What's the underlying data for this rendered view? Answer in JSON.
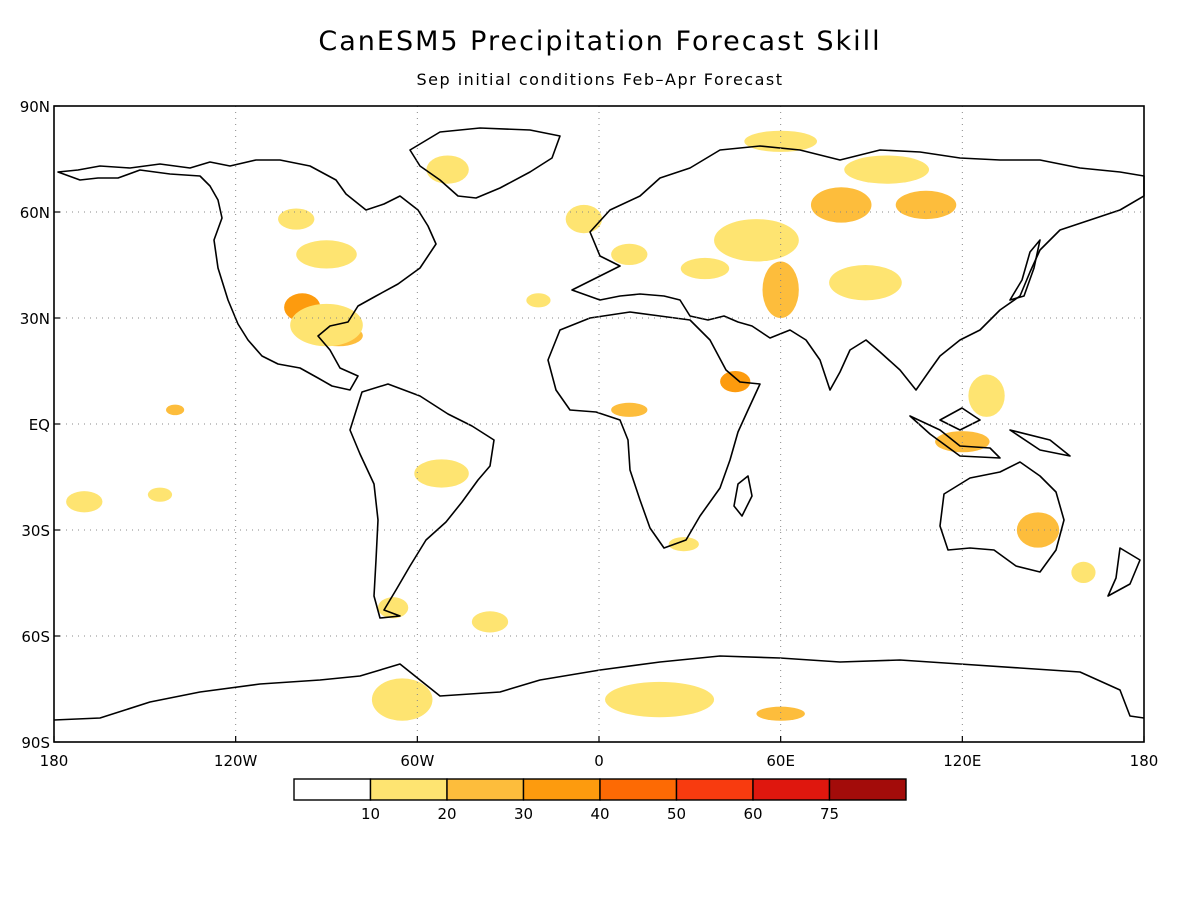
{
  "title": "CanESM5 Precipitation Forecast Skill",
  "subtitle": "Sep initial conditions  Feb–Apr Forecast",
  "axes": {
    "lon_range": [
      -180,
      180
    ],
    "lat_range": [
      -90,
      90
    ],
    "lon_ticks": [
      {
        "value": -180,
        "label": "180"
      },
      {
        "value": -120,
        "label": "120W"
      },
      {
        "value": -60,
        "label": "60W"
      },
      {
        "value": 0,
        "label": "0"
      },
      {
        "value": 60,
        "label": "60E"
      },
      {
        "value": 120,
        "label": "120E"
      },
      {
        "value": 180,
        "label": "180"
      }
    ],
    "lat_ticks": [
      {
        "value": 90,
        "label": "90N"
      },
      {
        "value": 60,
        "label": "60N"
      },
      {
        "value": 30,
        "label": "30N"
      },
      {
        "value": 0,
        "label": "EQ"
      },
      {
        "value": -30,
        "label": "30S"
      },
      {
        "value": -60,
        "label": "60S"
      },
      {
        "value": -90,
        "label": "90S"
      }
    ],
    "grid": true
  },
  "legend": {
    "bins": [
      {
        "color": "#ffffff"
      },
      {
        "color": "#fee471"
      },
      {
        "color": "#fdbd3c"
      },
      {
        "color": "#fd9b0e"
      },
      {
        "color": "#fd6a04"
      },
      {
        "color": "#f83b0f"
      },
      {
        "color": "#df170e"
      },
      {
        "color": "#a30c0a"
      }
    ],
    "labels": [
      "10",
      "20",
      "30",
      "40",
      "50",
      "60",
      "75"
    ]
  },
  "skill_regions": [
    {
      "lon": -98,
      "lat": 33,
      "rx": 6,
      "ry": 4,
      "level": 3
    },
    {
      "lon": -86,
      "lat": 25,
      "rx": 8,
      "ry": 3,
      "level": 2
    },
    {
      "lon": -90,
      "lat": 28,
      "rx": 12,
      "ry": 6,
      "level": 1
    },
    {
      "lon": -140,
      "lat": 4,
      "rx": 3,
      "ry": 1.5,
      "level": 2
    },
    {
      "lon": -170,
      "lat": -22,
      "rx": 6,
      "ry": 3,
      "level": 1
    },
    {
      "lon": -145,
      "lat": -20,
      "rx": 4,
      "ry": 2,
      "level": 1
    },
    {
      "lon": -52,
      "lat": -14,
      "rx": 9,
      "ry": 4,
      "level": 1
    },
    {
      "lon": -68,
      "lat": -52,
      "rx": 5,
      "ry": 3,
      "level": 1
    },
    {
      "lon": -36,
      "lat": -56,
      "rx": 6,
      "ry": 3,
      "level": 1
    },
    {
      "lon": -90,
      "lat": 48,
      "rx": 10,
      "ry": 4,
      "level": 1
    },
    {
      "lon": -100,
      "lat": 58,
      "rx": 6,
      "ry": 3,
      "level": 1
    },
    {
      "lon": -50,
      "lat": 72,
      "rx": 7,
      "ry": 4,
      "level": 1
    },
    {
      "lon": -20,
      "lat": 35,
      "rx": 4,
      "ry": 2,
      "level": 1
    },
    {
      "lon": -5,
      "lat": 58,
      "rx": 6,
      "ry": 4,
      "level": 1
    },
    {
      "lon": 10,
      "lat": 48,
      "rx": 6,
      "ry": 3,
      "level": 1
    },
    {
      "lon": 35,
      "lat": 44,
      "rx": 8,
      "ry": 3,
      "level": 1
    },
    {
      "lon": 52,
      "lat": 52,
      "rx": 14,
      "ry": 6,
      "level": 1
    },
    {
      "lon": 60,
      "lat": 38,
      "rx": 6,
      "ry": 8,
      "level": 2
    },
    {
      "lon": 80,
      "lat": 62,
      "rx": 10,
      "ry": 5,
      "level": 2
    },
    {
      "lon": 108,
      "lat": 62,
      "rx": 10,
      "ry": 4,
      "level": 2
    },
    {
      "lon": 95,
      "lat": 72,
      "rx": 14,
      "ry": 4,
      "level": 1
    },
    {
      "lon": 60,
      "lat": 80,
      "rx": 12,
      "ry": 3,
      "level": 1
    },
    {
      "lon": 88,
      "lat": 40,
      "rx": 12,
      "ry": 5,
      "level": 1
    },
    {
      "lon": 45,
      "lat": 12,
      "rx": 5,
      "ry": 3,
      "level": 3
    },
    {
      "lon": 10,
      "lat": 4,
      "rx": 6,
      "ry": 2,
      "level": 2
    },
    {
      "lon": 28,
      "lat": -34,
      "rx": 5,
      "ry": 2,
      "level": 1
    },
    {
      "lon": 120,
      "lat": -5,
      "rx": 9,
      "ry": 3,
      "level": 2
    },
    {
      "lon": 128,
      "lat": 8,
      "rx": 6,
      "ry": 6,
      "level": 1
    },
    {
      "lon": 145,
      "lat": -30,
      "rx": 7,
      "ry": 5,
      "level": 2
    },
    {
      "lon": 160,
      "lat": -42,
      "rx": 4,
      "ry": 3,
      "level": 1
    },
    {
      "lon": -65,
      "lat": -78,
      "rx": 10,
      "ry": 6,
      "level": 1
    },
    {
      "lon": 20,
      "lat": -78,
      "rx": 18,
      "ry": 5,
      "level": 1
    },
    {
      "lon": 60,
      "lat": -82,
      "rx": 8,
      "ry": 2,
      "level": 2
    }
  ]
}
